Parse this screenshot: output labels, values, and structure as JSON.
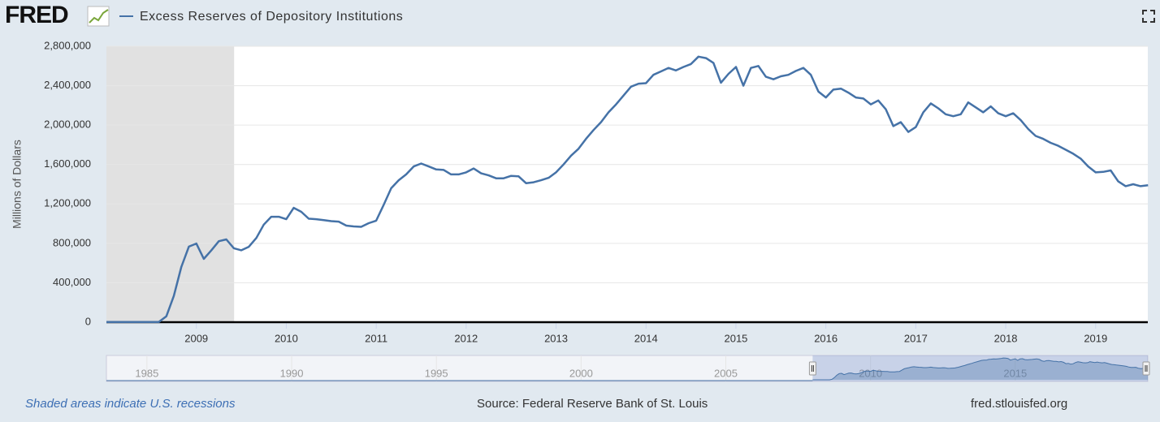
{
  "logo": "FRED",
  "chart_data": {
    "type": "line",
    "title": "Excess Reserves of Depository Institutions",
    "y_label": "Millions of Dollars",
    "x": [
      2008,
      2008.083,
      2008.167,
      2008.25,
      2008.333,
      2008.417,
      2008.5,
      2008.583,
      2008.667,
      2008.75,
      2008.833,
      2008.917,
      2009,
      2009.083,
      2009.167,
      2009.25,
      2009.333,
      2009.417,
      2009.5,
      2009.583,
      2009.667,
      2009.75,
      2009.833,
      2009.917,
      2010,
      2010.083,
      2010.167,
      2010.25,
      2010.333,
      2010.417,
      2010.5,
      2010.583,
      2010.667,
      2010.75,
      2010.833,
      2010.917,
      2011,
      2011.083,
      2011.167,
      2011.25,
      2011.333,
      2011.417,
      2011.5,
      2011.583,
      2011.667,
      2011.75,
      2011.833,
      2011.917,
      2012,
      2012.083,
      2012.167,
      2012.25,
      2012.333,
      2012.417,
      2012.5,
      2012.583,
      2012.667,
      2012.75,
      2012.833,
      2012.917,
      2013,
      2013.083,
      2013.167,
      2013.25,
      2013.333,
      2013.417,
      2013.5,
      2013.583,
      2013.667,
      2013.75,
      2013.833,
      2013.917,
      2014,
      2014.083,
      2014.167,
      2014.25,
      2014.333,
      2014.417,
      2014.5,
      2014.583,
      2014.667,
      2014.75,
      2014.833,
      2014.917,
      2015,
      2015.083,
      2015.167,
      2015.25,
      2015.333,
      2015.417,
      2015.5,
      2015.583,
      2015.667,
      2015.75,
      2015.833,
      2015.917,
      2016,
      2016.083,
      2016.167,
      2016.25,
      2016.333,
      2016.417,
      2016.5,
      2016.583,
      2016.667,
      2016.75,
      2016.833,
      2016.917,
      2017,
      2017.083,
      2017.167,
      2017.25,
      2017.333,
      2017.417,
      2017.5,
      2017.583,
      2017.667,
      2017.75,
      2017.833,
      2017.917,
      2018,
      2018.083,
      2018.167,
      2018.25,
      2018.333,
      2018.417,
      2018.5,
      2018.583,
      2018.667,
      2018.75,
      2018.833,
      2018.917,
      2019,
      2019.083,
      2019.167,
      2019.25,
      2019.333,
      2019.417,
      2019.5,
      2019.583
    ],
    "series": [
      {
        "name": "Excess Reserves of Depository Institutions",
        "color": "#4572a7",
        "values": [
          2000,
          2000,
          2000,
          2000,
          2000,
          2000,
          2000,
          2000,
          60000,
          267000,
          560000,
          767000,
          798000,
          642000,
          730000,
          822000,
          840000,
          750000,
          730000,
          765000,
          855000,
          990000,
          1070000,
          1070000,
          1045000,
          1160000,
          1120000,
          1050000,
          1045000,
          1035000,
          1025000,
          1020000,
          980000,
          972000,
          968000,
          1005000,
          1030000,
          1190000,
          1360000,
          1440000,
          1500000,
          1580000,
          1610000,
          1580000,
          1550000,
          1545000,
          1500000,
          1500000,
          1520000,
          1560000,
          1510000,
          1490000,
          1460000,
          1460000,
          1485000,
          1480000,
          1410000,
          1420000,
          1440000,
          1465000,
          1520000,
          1600000,
          1690000,
          1760000,
          1860000,
          1950000,
          2030000,
          2130000,
          2210000,
          2300000,
          2390000,
          2420000,
          2425000,
          2510000,
          2545000,
          2580000,
          2555000,
          2590000,
          2620000,
          2695000,
          2680000,
          2630000,
          2430000,
          2520000,
          2590000,
          2400000,
          2580000,
          2600000,
          2490000,
          2465000,
          2495000,
          2510000,
          2550000,
          2580000,
          2510000,
          2340000,
          2280000,
          2360000,
          2370000,
          2330000,
          2280000,
          2270000,
          2210000,
          2250000,
          2160000,
          1990000,
          2030000,
          1930000,
          1980000,
          2130000,
          2220000,
          2170000,
          2110000,
          2090000,
          2110000,
          2230000,
          2180000,
          2130000,
          2190000,
          2120000,
          2090000,
          2120000,
          2050000,
          1960000,
          1890000,
          1860000,
          1820000,
          1790000,
          1750000,
          1710000,
          1660000,
          1580000,
          1520000,
          1525000,
          1540000,
          1430000,
          1380000,
          1400000,
          1380000,
          1390000
        ]
      }
    ],
    "xlim": [
      2008,
      2019.58
    ],
    "xticks": [
      2009,
      2010,
      2011,
      2012,
      2013,
      2014,
      2015,
      2016,
      2017,
      2018,
      2019
    ],
    "ylim": [
      0,
      2800000
    ],
    "yticks": [
      0,
      {
        "value": 400000,
        "label": "400,000"
      },
      {
        "value": 800000,
        "label": "800,000"
      },
      {
        "value": 1200000,
        "label": "1,200,000"
      },
      {
        "value": 1600000,
        "label": "1,600,000"
      },
      {
        "value": 2000000,
        "label": "2,000,000"
      },
      {
        "value": 2400000,
        "label": "2,400,000"
      },
      {
        "value": 2800000,
        "label": "2,800,000"
      }
    ],
    "grid": true,
    "recessions": [
      [
        2007.92,
        2009.42
      ]
    ],
    "recession_color": "#e1e1e1",
    "navigator": {
      "xlim": [
        1983.6,
        2019.58
      ],
      "xticks": [
        1985,
        1990,
        1995,
        2000,
        2005,
        2010,
        2015
      ]
    }
  },
  "footer": {
    "note": "Shaded areas indicate U.S. recessions",
    "source": "Source: Federal Reserve Bank of St. Louis",
    "site": "fred.stlouisfed.org"
  }
}
